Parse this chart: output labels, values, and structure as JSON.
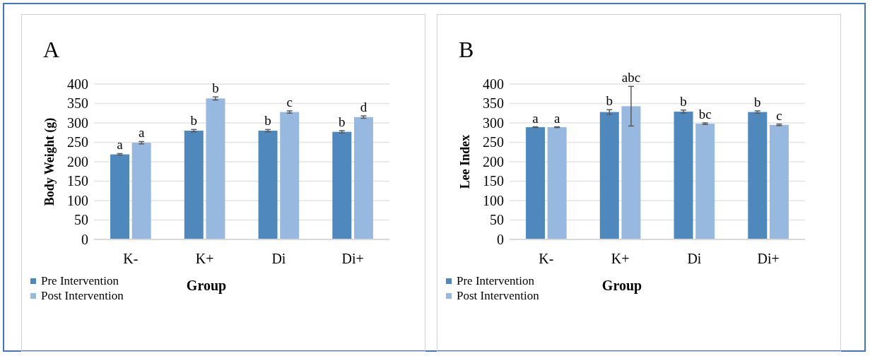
{
  "chart_data": [
    {
      "type": "bar",
      "title": "A",
      "xlabel": "Group",
      "ylabel": "Body Weight (g)",
      "categories": [
        "K-",
        "K+",
        "Di",
        "Di+"
      ],
      "ylim": [
        0,
        400
      ],
      "yticks": [
        0,
        50,
        100,
        150,
        200,
        250,
        300,
        350,
        400
      ],
      "grid": "y",
      "legend": "bottom left",
      "series": [
        {
          "name": "Pre Intervention",
          "color": "#4f88bd",
          "values": [
            219,
            280,
            280,
            277
          ],
          "errors": [
            2,
            3,
            3,
            3
          ],
          "value_labels": [
            "a",
            "b",
            "b",
            "b"
          ]
        },
        {
          "name": "Post Intervention",
          "color": "#97b8df",
          "values": [
            249,
            363,
            328,
            315
          ],
          "errors": [
            3,
            4,
            3,
            3
          ],
          "value_labels": [
            "a",
            "b",
            "c",
            "d"
          ]
        }
      ]
    },
    {
      "type": "bar",
      "title": "B",
      "xlabel": "Group",
      "ylabel": "Lee Index",
      "categories": [
        "K-",
        "K+",
        "Di",
        "Di+"
      ],
      "ylim": [
        0,
        400
      ],
      "yticks": [
        0,
        50,
        100,
        150,
        200,
        250,
        300,
        350,
        400
      ],
      "grid": "y",
      "legend": "bottom left",
      "series": [
        {
          "name": "Pre Intervention",
          "color": "#4f88bd",
          "values": [
            289,
            328,
            329,
            328
          ],
          "errors": [
            1,
            6,
            4,
            3
          ],
          "value_labels": [
            "a",
            "b",
            "b",
            "b"
          ]
        },
        {
          "name": "Post Intervention",
          "color": "#97b8df",
          "values": [
            289,
            343,
            298,
            295
          ],
          "errors": [
            1,
            51,
            2,
            2
          ],
          "value_labels": [
            "a",
            "abc",
            "bc",
            "c"
          ]
        }
      ]
    }
  ]
}
